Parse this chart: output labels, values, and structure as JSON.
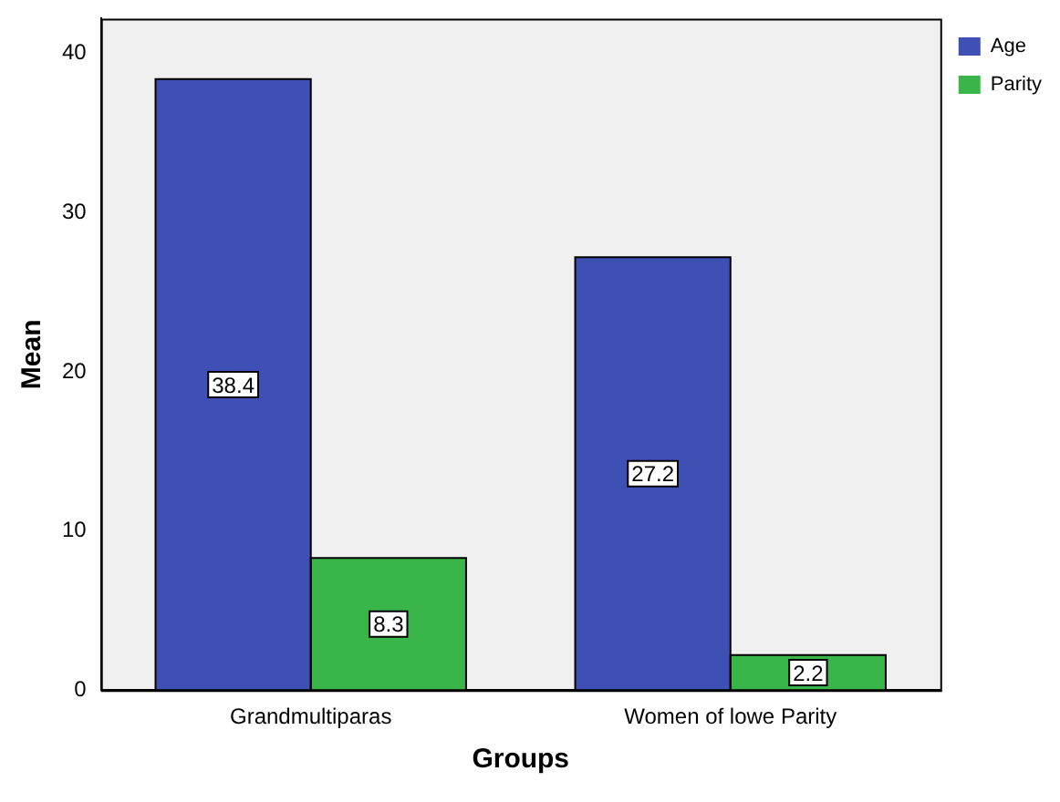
{
  "chart_data": {
    "type": "bar",
    "xlabel": "Groups",
    "ylabel": "Mean",
    "categories": [
      "Grandmultiparas",
      "Women of lowe Parity"
    ],
    "series": [
      {
        "name": "Age",
        "color": "#3e50b4",
        "values": [
          38.4,
          27.2
        ]
      },
      {
        "name": "Parity",
        "color": "#39b54a",
        "values": [
          8.3,
          2.2
        ]
      }
    ],
    "ylim": [
      0,
      42.2
    ],
    "yticks": [
      0,
      10,
      20,
      30,
      40
    ],
    "grid": false,
    "legend": "top right",
    "data_labels": true
  }
}
